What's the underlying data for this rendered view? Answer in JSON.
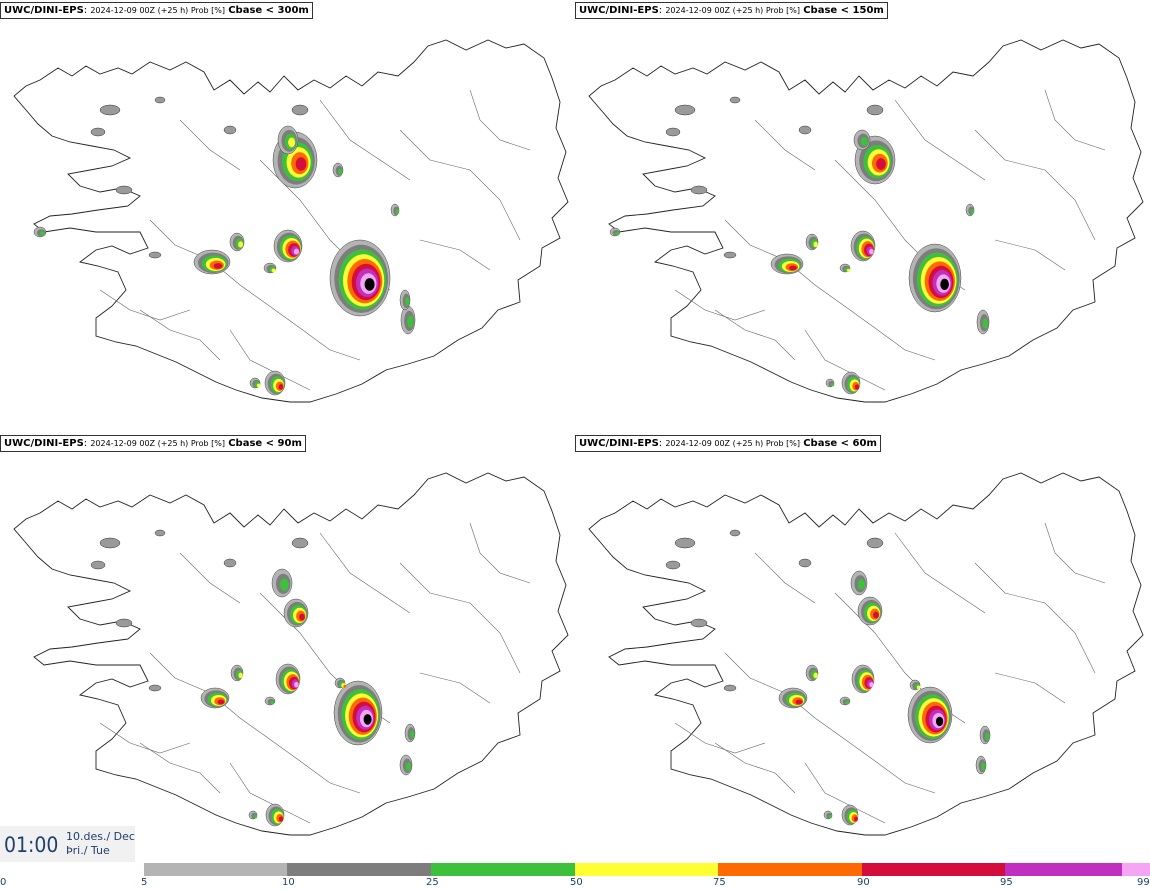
{
  "panels": [
    {
      "model": "UWC/DINI-EPS",
      "run_info": "2024-12-09 00Z (+25 h) Prob [%]",
      "field": "Cbase < 300m"
    },
    {
      "model": "UWC/DINI-EPS",
      "run_info": "2024-12-09 00Z (+25 h) Prob [%]",
      "field": "Cbase < 150m"
    },
    {
      "model": "UWC/DINI-EPS",
      "run_info": "2024-12-09 00Z (+25 h) Prob [%]",
      "field": "Cbase < 90m"
    },
    {
      "model": "UWC/DINI-EPS",
      "run_info": "2024-12-09 00Z (+25 h) Prob [%]",
      "field": "Cbase < 60m"
    }
  ],
  "time": {
    "clock": "01:00",
    "date_line": "10.des./ Dec",
    "day_line": "Þri./ Tue"
  },
  "legend": {
    "bins": [
      {
        "from": 0,
        "to": 5,
        "color": "#ffffff"
      },
      {
        "from": 5,
        "to": 10,
        "color": "#b4b4b4"
      },
      {
        "from": 10,
        "to": 25,
        "color": "#7d7d7d"
      },
      {
        "from": 25,
        "to": 50,
        "color": "#3dc13d"
      },
      {
        "from": 50,
        "to": 75,
        "color": "#ffff33"
      },
      {
        "from": 75,
        "to": 90,
        "color": "#ff6a00"
      },
      {
        "from": 90,
        "to": 95,
        "color": "#d40d3c"
      },
      {
        "from": 95,
        "to": 99,
        "color": "#c02fc0"
      },
      {
        "from": 99,
        "to": 100,
        "color": "#f4a6f4"
      }
    ],
    "labels": [
      "0",
      "5",
      "10",
      "25",
      "50",
      "75",
      "90",
      "95",
      "99"
    ]
  }
}
